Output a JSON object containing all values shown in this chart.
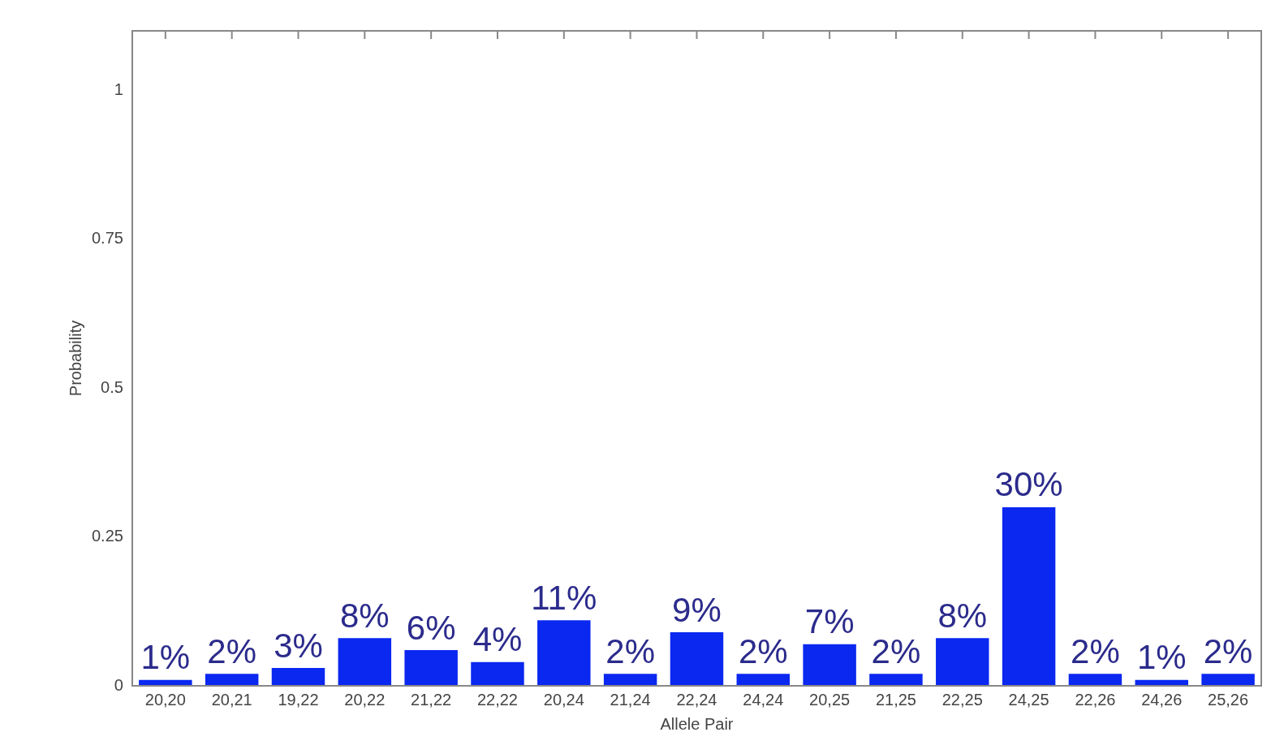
{
  "chart_data": {
    "type": "bar",
    "xlabel": "Allele Pair",
    "ylabel": "Probability",
    "categories": [
      "20,20",
      "20,21",
      "19,22",
      "20,22",
      "21,22",
      "22,22",
      "20,24",
      "21,24",
      "22,24",
      "24,24",
      "20,25",
      "21,25",
      "22,25",
      "24,25",
      "22,26",
      "24,26",
      "25,26"
    ],
    "values": [
      0.01,
      0.02,
      0.03,
      0.08,
      0.06,
      0.04,
      0.11,
      0.02,
      0.09,
      0.02,
      0.07,
      0.02,
      0.08,
      0.3,
      0.02,
      0.01,
      0.02
    ],
    "value_labels": [
      "1%",
      "2%",
      "3%",
      "8%",
      "6%",
      "4%",
      "11%",
      "2%",
      "9%",
      "2%",
      "7%",
      "2%",
      "8%",
      "30%",
      "2%",
      "1%",
      "2%"
    ],
    "color": "#0a28f0",
    "ylim": [
      0,
      1.1
    ],
    "yticks": [
      0,
      0.25,
      0.5,
      0.75,
      1
    ],
    "grid": false,
    "legend": false
  }
}
